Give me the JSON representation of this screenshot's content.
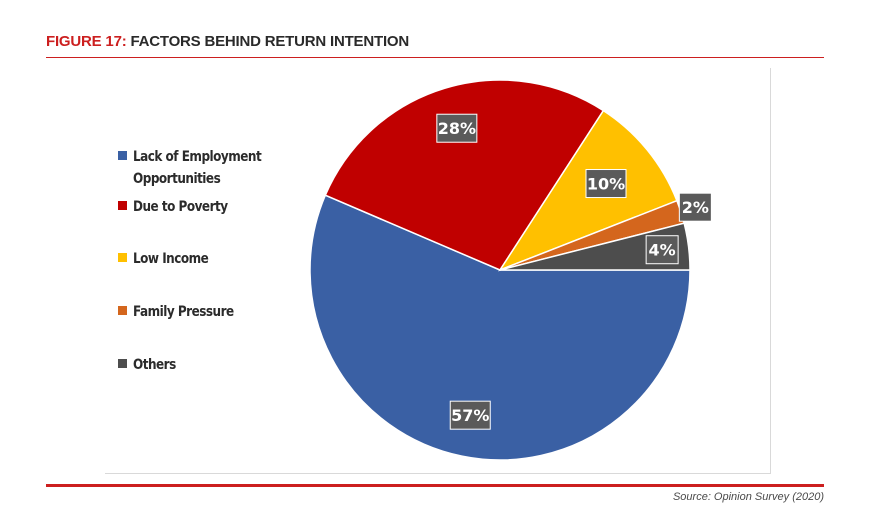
{
  "figure": {
    "number": "FIGURE 17:",
    "title": "FACTORS BEHIND RETURN INTENTION"
  },
  "source": "Source: Opinion Survey (2020)",
  "chart_data": {
    "type": "pie",
    "title": "",
    "legend_position": "left",
    "slices": [
      {
        "name": "Lack of Employment Opportunities",
        "value": 57,
        "label": "57%",
        "color": "#3a60a4"
      },
      {
        "name": "Due to Poverty",
        "value": 28,
        "label": "28%",
        "color": "#c00000"
      },
      {
        "name": "Low Income",
        "value": 10,
        "label": "10%",
        "color": "#ffc000"
      },
      {
        "name": "Family Pressure",
        "value": 2,
        "label": "2%",
        "color": "#d4661d"
      },
      {
        "name": "Others",
        "value": 4,
        "label": "4%",
        "color": "#4d4d4d"
      }
    ],
    "legend": [
      {
        "label_line1": "Lack of Employment",
        "label_line2": "Opportunities",
        "color": "#3a60a4"
      },
      {
        "label_line1": "Due to Poverty",
        "label_line2": "",
        "color": "#c00000"
      },
      {
        "label_line1": "Low Income",
        "label_line2": "",
        "color": "#ffc000"
      },
      {
        "label_line1": "Family Pressure",
        "label_line2": "",
        "color": "#d4661d"
      },
      {
        "label_line1": "Others",
        "label_line2": "",
        "color": "#4d4d4d"
      }
    ]
  }
}
